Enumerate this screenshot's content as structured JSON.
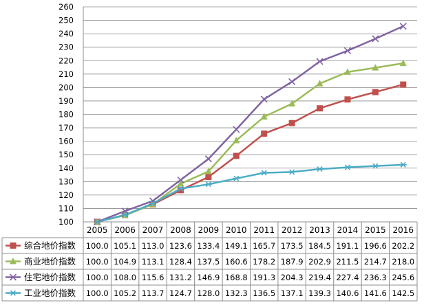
{
  "chart_data": {
    "type": "line",
    "title": "",
    "xlabel": "",
    "ylabel": "",
    "ylim": [
      100,
      260
    ],
    "yticks": [
      100,
      110,
      120,
      130,
      140,
      150,
      160,
      170,
      180,
      190,
      200,
      210,
      220,
      230,
      240,
      250,
      260
    ],
    "grid": "horizontal",
    "legend": "data-table-rows",
    "categories": [
      "2005",
      "2006",
      "2007",
      "2008",
      "2009",
      "2010",
      "2011",
      "2012",
      "2013",
      "2014",
      "2015",
      "2016"
    ],
    "series": [
      {
        "name": "综合地价指数",
        "color": "#C0504D",
        "marker": "square",
        "values": [
          100.0,
          105.1,
          113.0,
          123.6,
          133.4,
          149.1,
          165.7,
          173.5,
          184.5,
          191.1,
          196.6,
          202.2
        ],
        "labels": [
          "100.0",
          "105.1",
          "113.0",
          "123.6",
          "133.4",
          "149.1",
          "165.7",
          "173.5",
          "184.5",
          "191.1",
          "196.6",
          "202.2"
        ]
      },
      {
        "name": "商业地价指数",
        "color": "#9BBB59",
        "marker": "triangle",
        "values": [
          100.0,
          104.9,
          113.1,
          128.4,
          137.5,
          160.6,
          178.2,
          187.9,
          202.9,
          211.5,
          214.7,
          218.0
        ],
        "labels": [
          "100.0",
          "104.9",
          "113.1",
          "128.4",
          "137.5",
          "160.6",
          "178.2",
          "187.9",
          "202.9",
          "211.5",
          "214.7",
          "218.0"
        ]
      },
      {
        "name": "住宅地价指数",
        "color": "#8064A2",
        "marker": "x",
        "values": [
          100.0,
          108.0,
          115.6,
          131.2,
          146.9,
          168.8,
          191.3,
          204.3,
          219.4,
          227.4,
          236.3,
          245.6
        ],
        "labels": [
          "100.0",
          "108.0",
          "115.6",
          "131.2",
          "146.9",
          "168.8",
          "191.3",
          "204.3",
          "219.4",
          "227.4",
          "236.3",
          "245.6"
        ]
      },
      {
        "name": "工业地价指数",
        "color": "#4BACC6",
        "marker": "star",
        "values": [
          100.0,
          105.2,
          113.7,
          124.7,
          128.0,
          132.3,
          136.5,
          137.1,
          139.3,
          140.6,
          141.6,
          142.5
        ],
        "labels": [
          "100.0",
          "105.2",
          "113.7",
          "124.7",
          "128.0",
          "132.3",
          "136.5",
          "137.1",
          "139.3",
          "140.6",
          "141.6",
          "142.5"
        ]
      }
    ]
  }
}
